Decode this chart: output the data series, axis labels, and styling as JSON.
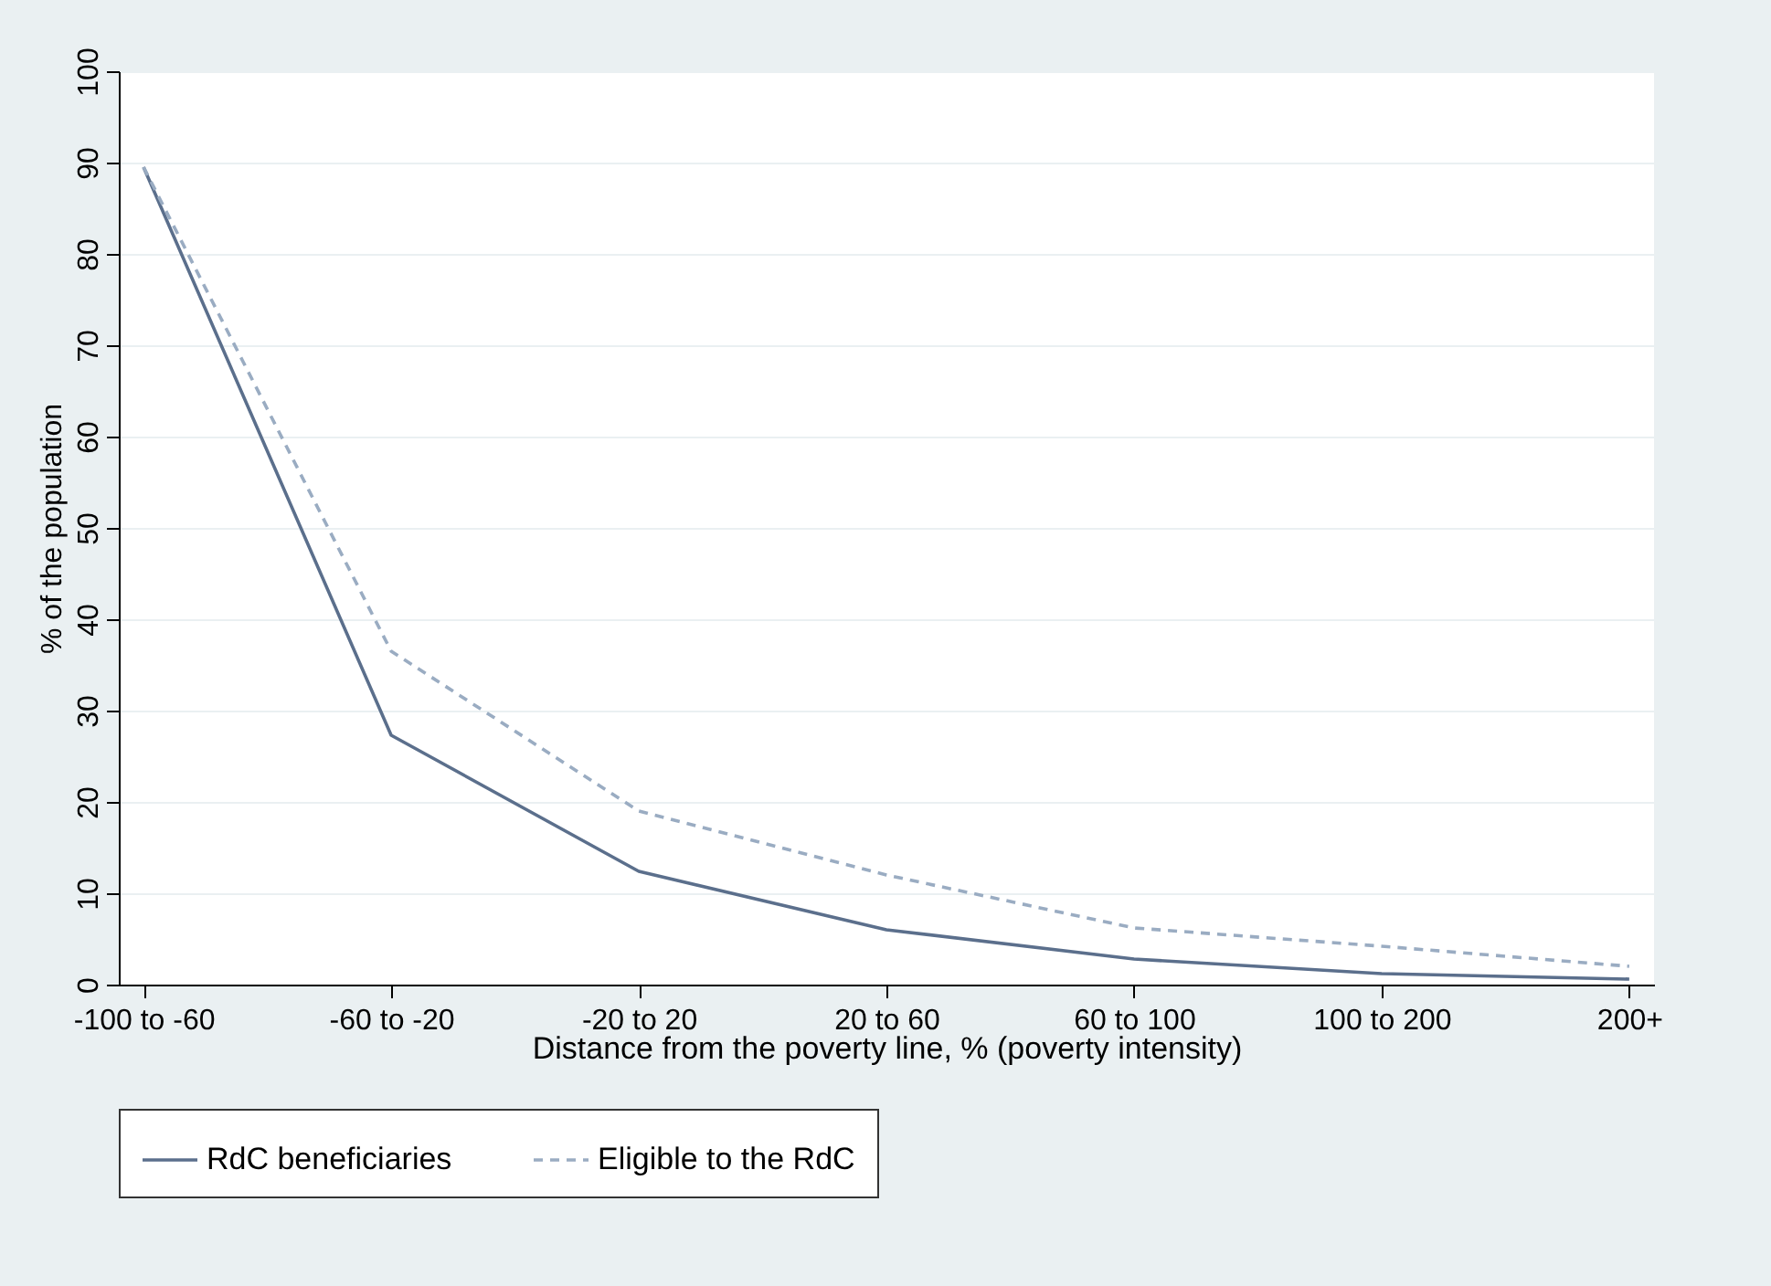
{
  "chart_data": {
    "type": "line",
    "xlabel": "Distance from the poverty line, % (poverty intensity)",
    "ylabel": "% of the population",
    "categories": [
      "-100 to -60",
      "-60 to -20",
      "-20 to 20",
      "20 to 60",
      "60 to 100",
      "100 to 200",
      "200+"
    ],
    "series": [
      {
        "name": "RdC beneficiaries",
        "color": "#5b6f8c",
        "line_style": "solid",
        "values": [
          89.5,
          27.3,
          12.4,
          6.0,
          2.8,
          1.2,
          0.6
        ]
      },
      {
        "name": "Eligible to the RdC",
        "color": "#9aacc2",
        "line_style": "dashed",
        "values": [
          89.5,
          36.5,
          19.0,
          12.0,
          6.2,
          4.2,
          2.0
        ]
      }
    ],
    "ylim": [
      0,
      100
    ],
    "yticks": [
      0,
      10,
      20,
      30,
      40,
      50,
      60,
      70,
      80,
      90,
      100
    ],
    "grid": "y",
    "legend": "bottom",
    "marker": "none"
  }
}
